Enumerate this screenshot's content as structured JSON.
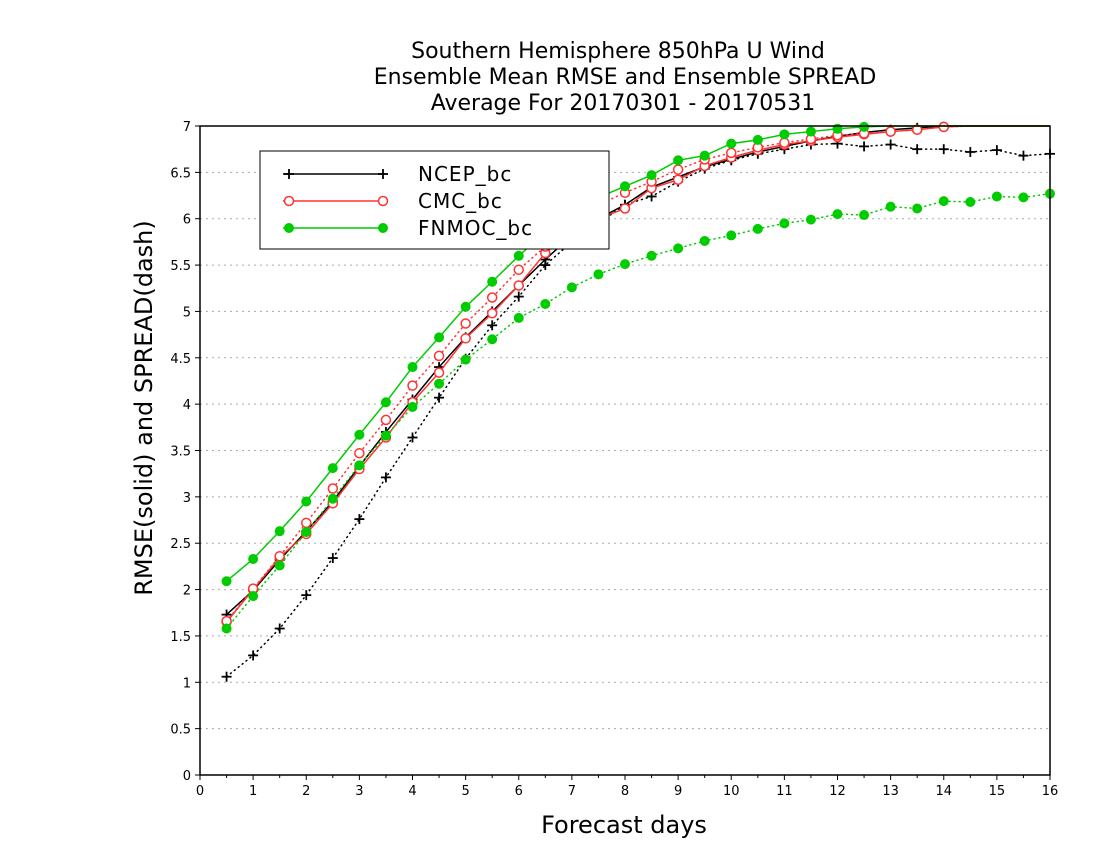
{
  "chart_data": {
    "type": "line",
    "title_lines": [
      "Southern Hemisphere 850hPa U Wind",
      "Ensemble Mean RMSE and Ensemble SPREAD",
      "Average For 20170301 - 20170531"
    ],
    "xlabel": "Forecast days",
    "ylabel": "RMSE(solid) and SPREAD(dash)",
    "xlim": [
      0,
      16
    ],
    "ylim": [
      0,
      7
    ],
    "x_ticks": [
      "0",
      "1",
      "2",
      "3",
      "4",
      "5",
      "6",
      "7",
      "8",
      "9",
      "10",
      "11",
      "12",
      "13",
      "14",
      "15",
      "16"
    ],
    "y_ticks": [
      "0",
      "0.5",
      "1",
      "1.5",
      "2",
      "2.5",
      "3",
      "3.5",
      "4",
      "4.5",
      "5",
      "5.5",
      "6",
      "6.5",
      "7"
    ],
    "y_tick_values": [
      0,
      0.5,
      1,
      1.5,
      2,
      2.5,
      3,
      3.5,
      4,
      4.5,
      5,
      5.5,
      6,
      6.5,
      7
    ],
    "grid": true,
    "legend_position": "top-left",
    "x": [
      0.5,
      1,
      1.5,
      2,
      2.5,
      3,
      3.5,
      4,
      4.5,
      5,
      5.5,
      6,
      6.5,
      7,
      7.5,
      8,
      8.5,
      9,
      9.5,
      10,
      10.5,
      11,
      11.5,
      12,
      12.5,
      13,
      13.5,
      14,
      14.5,
      15,
      15.5,
      16
    ],
    "series": [
      {
        "name": "NCEP_bc",
        "color": "#000000",
        "marker": "plus",
        "rmse": [
          1.73,
          1.99,
          2.32,
          2.63,
          2.95,
          3.33,
          3.7,
          4.05,
          4.4,
          4.72,
          5.0,
          5.28,
          5.56,
          5.82,
          6.0,
          6.15,
          6.34,
          6.45,
          6.56,
          6.64,
          6.72,
          6.78,
          6.84,
          6.89,
          6.93,
          6.96,
          6.98,
          7.0,
          7.0,
          7.0,
          7.0,
          7.0
        ],
        "spread": [
          1.06,
          1.29,
          1.58,
          1.94,
          2.34,
          2.76,
          3.21,
          3.64,
          4.07,
          4.49,
          4.85,
          5.16,
          5.5,
          5.75,
          5.95,
          6.15,
          6.24,
          6.4,
          6.54,
          6.63,
          6.7,
          6.75,
          6.8,
          6.81,
          6.78,
          6.8,
          6.75,
          6.75,
          6.72,
          6.74,
          6.68,
          6.7
        ]
      },
      {
        "name": "CMC_bc",
        "color": "#ff3333",
        "marker": "open-circle",
        "rmse": [
          1.65,
          2.0,
          2.35,
          2.6,
          2.93,
          3.3,
          3.64,
          4.02,
          4.34,
          4.71,
          4.98,
          5.28,
          5.63,
          5.86,
          6.0,
          6.11,
          6.33,
          6.42,
          6.57,
          6.66,
          6.74,
          6.8,
          6.84,
          6.88,
          6.91,
          6.94,
          6.96,
          6.99,
          7.0,
          7.0,
          7.0,
          7.0
        ],
        "spread": [
          1.66,
          2.01,
          2.36,
          2.72,
          3.09,
          3.47,
          3.83,
          4.2,
          4.52,
          4.87,
          5.15,
          5.45,
          5.7,
          5.93,
          6.15,
          6.28,
          6.4,
          6.53,
          6.64,
          6.71,
          6.77,
          6.82,
          6.86,
          6.9,
          6.92,
          6.94,
          6.96,
          6.99,
          7.0,
          7.0,
          7.0,
          7.0
        ]
      },
      {
        "name": "FNMOC_bc",
        "color": "#00cc00",
        "marker": "filled-circle",
        "rmse": [
          2.09,
          2.33,
          2.63,
          2.95,
          3.31,
          3.67,
          4.02,
          4.4,
          4.72,
          5.05,
          5.32,
          5.6,
          5.85,
          6.05,
          6.23,
          6.35,
          6.47,
          6.63,
          6.68,
          6.81,
          6.85,
          6.91,
          6.94,
          6.97,
          6.99,
          7.0,
          7.0,
          7.0,
          7.0,
          7.0,
          7.0,
          7.0
        ],
        "spread": [
          1.58,
          1.93,
          2.26,
          2.62,
          2.98,
          3.34,
          3.66,
          3.97,
          4.22,
          4.48,
          4.7,
          4.93,
          5.08,
          5.26,
          5.4,
          5.51,
          5.6,
          5.68,
          5.76,
          5.82,
          5.89,
          5.95,
          5.99,
          6.05,
          6.04,
          6.13,
          6.11,
          6.19,
          6.18,
          6.24,
          6.23,
          6.27
        ]
      }
    ]
  }
}
